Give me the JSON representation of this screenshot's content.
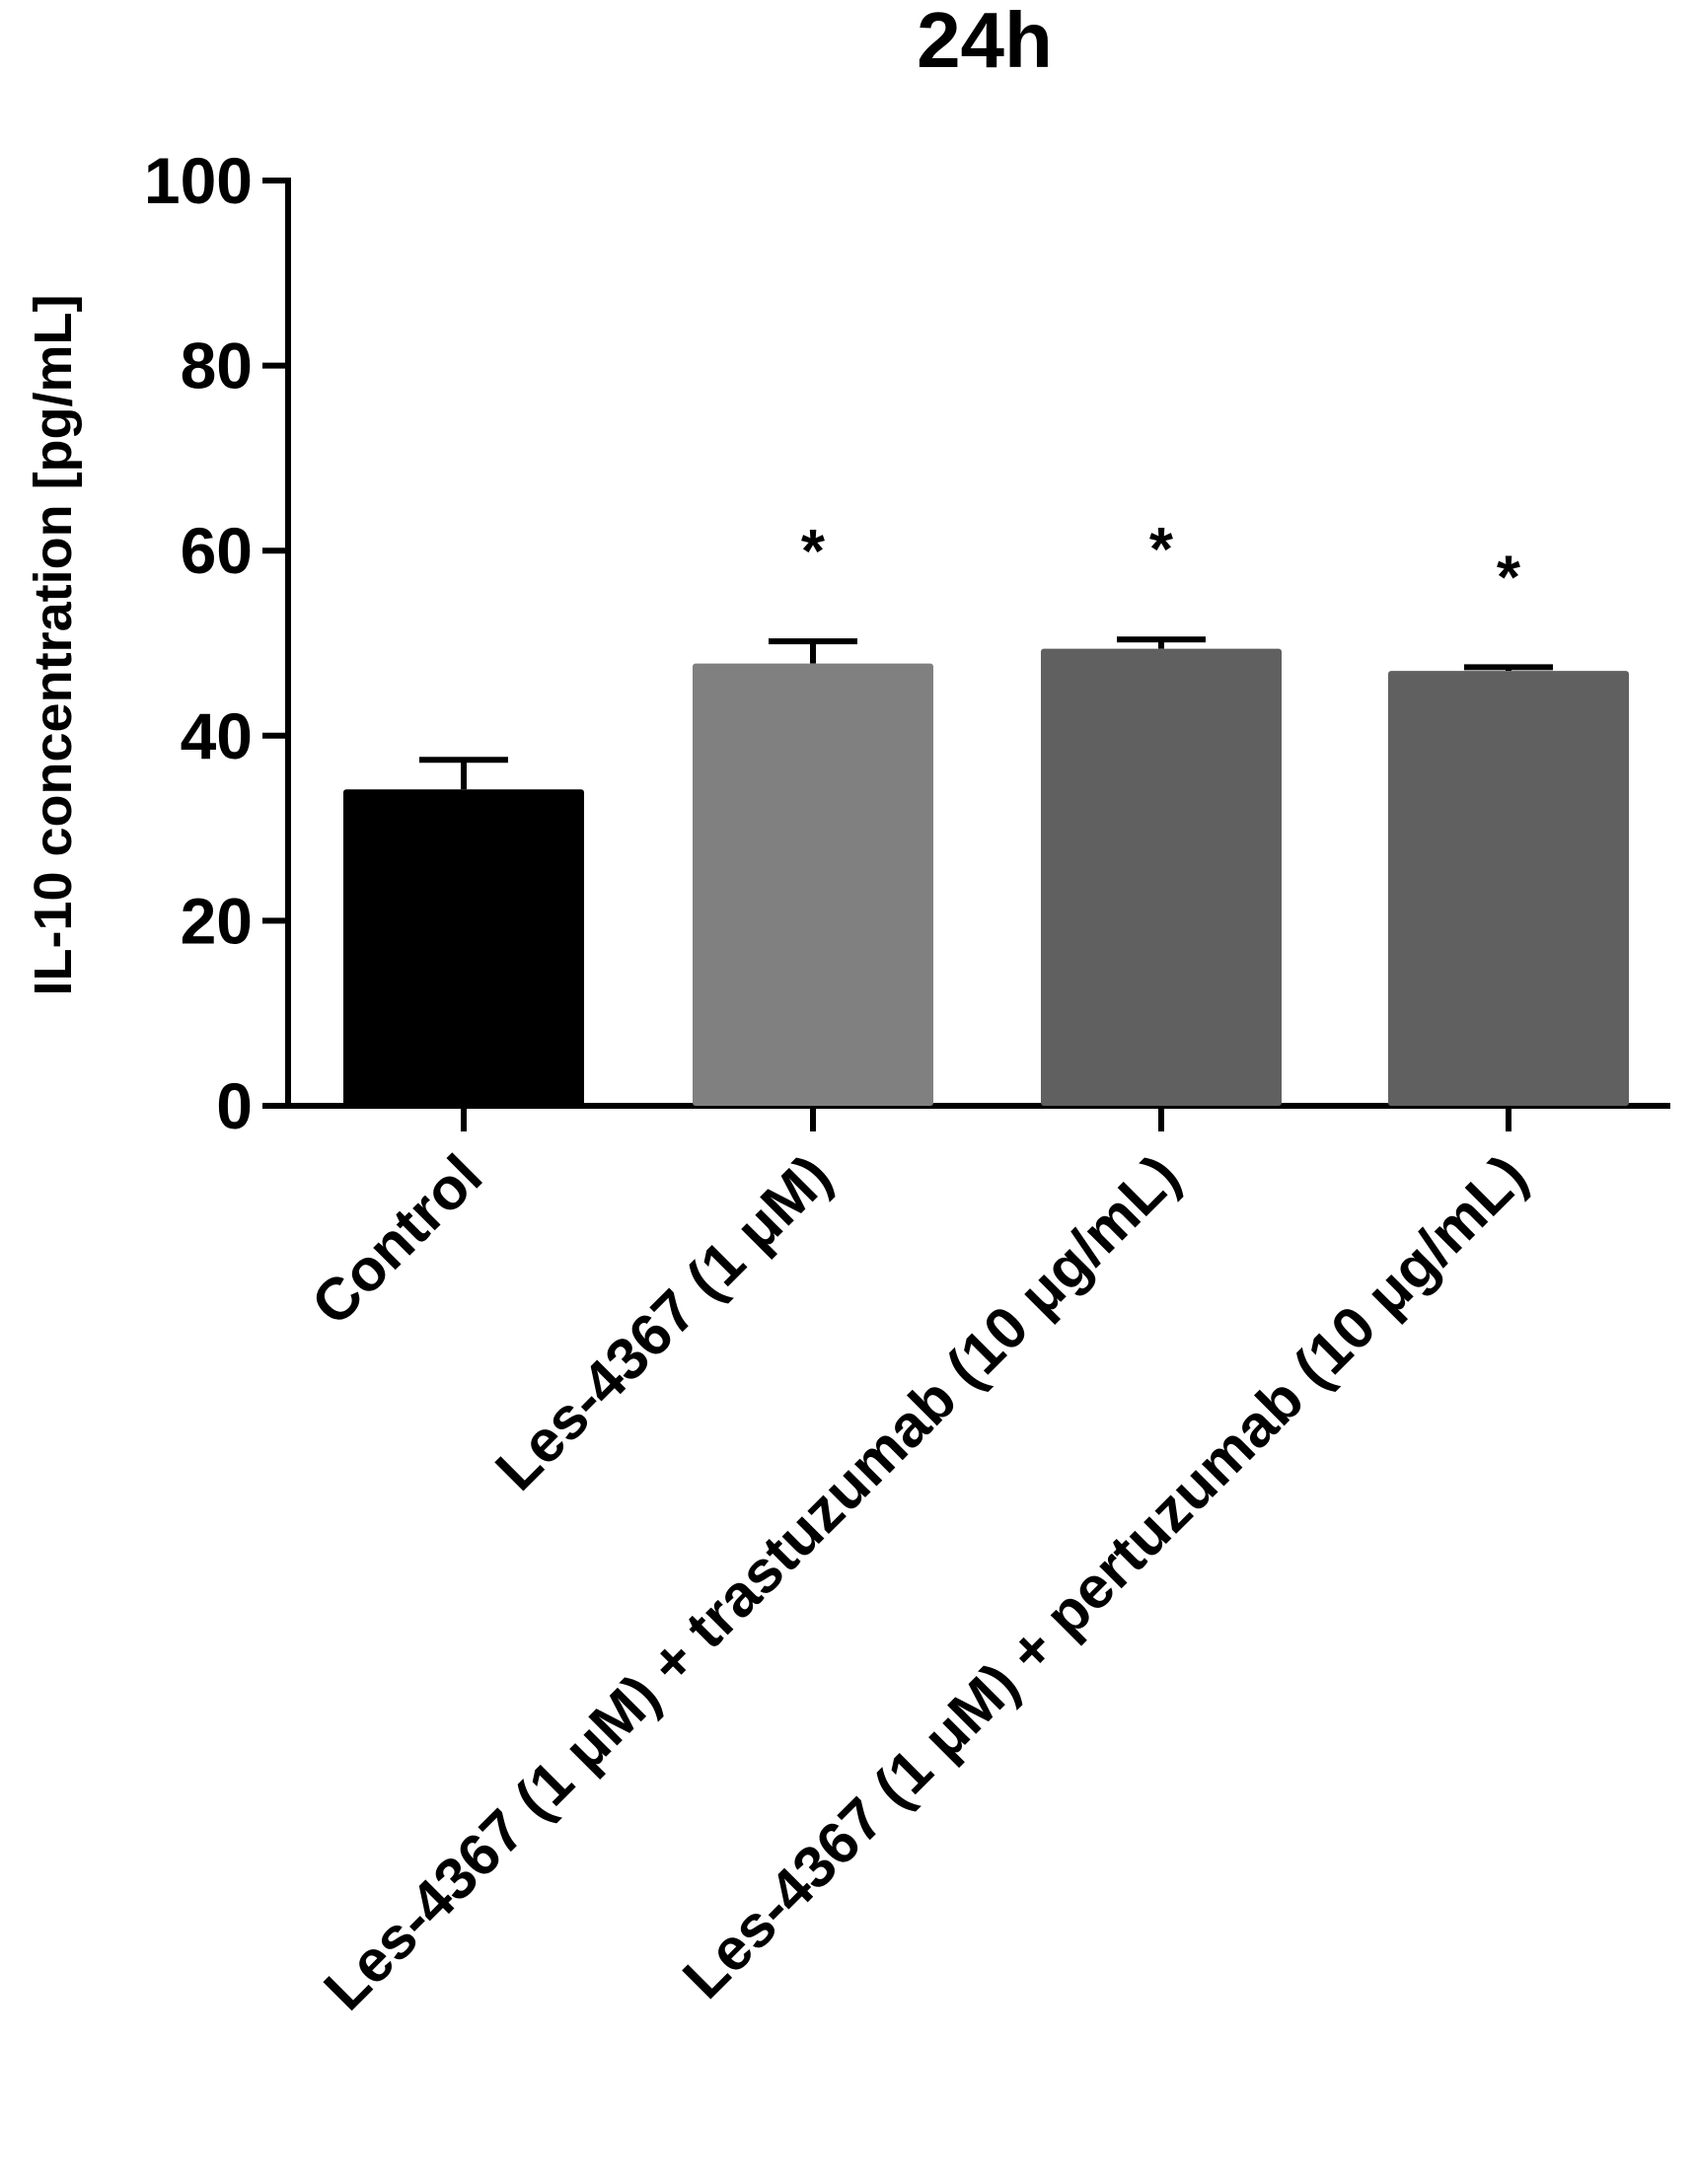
{
  "chart_data": {
    "type": "bar",
    "title": "24h",
    "xlabel": "",
    "ylabel": "IL-10 concentration [pg/mL]",
    "ylim": [
      0,
      100
    ],
    "yticks": [
      "0",
      "20",
      "40",
      "60",
      "80",
      "100"
    ],
    "grid": false,
    "categories": [
      "Control",
      "Les-4367 (1 μM)",
      "Les-4367 (1 μM) + trastuzumab (10 μg/mL)",
      "Les-4367 (1 μM) + pertuzumab (10 μg/mL)"
    ],
    "values": [
      34.2,
      47.8,
      49.4,
      47.0
    ],
    "errors": [
      3.2,
      2.4,
      1.0,
      0.4
    ],
    "significance": [
      "",
      "*",
      "*",
      "*"
    ],
    "colors": [
      "#000000",
      "#808080",
      "#606060",
      "#606060"
    ]
  }
}
